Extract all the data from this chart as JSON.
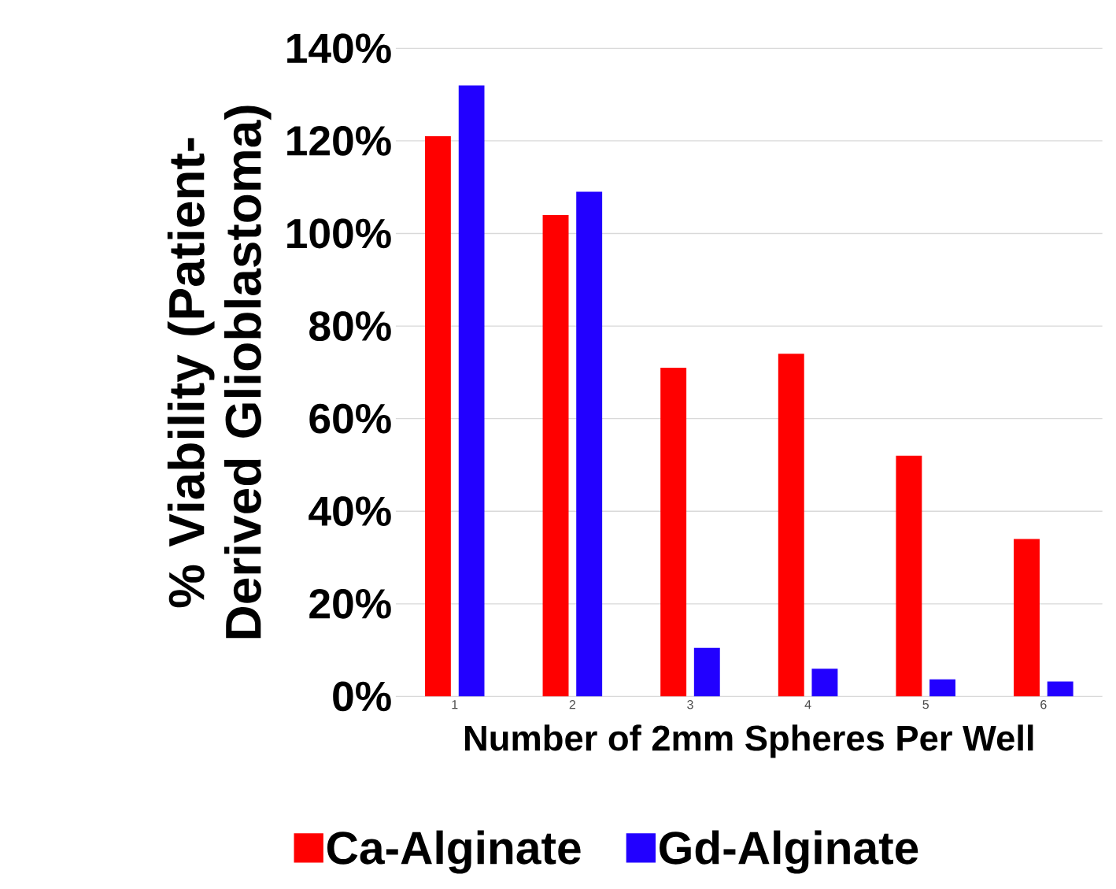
{
  "chart_data": {
    "type": "bar",
    "xlabel": "Number of 2mm Spheres Per Well",
    "ylabel": "% Viability (Patient-Derived Glioblastoma)",
    "categories": [
      "1",
      "2",
      "3",
      "4",
      "5",
      "6"
    ],
    "series": [
      {
        "name": "Ca-Alginate",
        "color": "#ff0000",
        "values": [
          121,
          104,
          71,
          74,
          52,
          34
        ]
      },
      {
        "name": "Gd-Alginate",
        "color": "#2200ff",
        "values": [
          132,
          109,
          10.5,
          6,
          3.7,
          3.2
        ]
      }
    ],
    "ylim": [
      0,
      140
    ],
    "yticks": [
      {
        "value": 0,
        "label": "0%"
      },
      {
        "value": 20,
        "label": "20%"
      },
      {
        "value": 40,
        "label": "40%"
      },
      {
        "value": 60,
        "label": "60%"
      },
      {
        "value": 80,
        "label": "80%"
      },
      {
        "value": 100,
        "label": "100%"
      },
      {
        "value": 120,
        "label": "120%"
      },
      {
        "value": 140,
        "label": "140%"
      }
    ],
    "grid": "y",
    "legend": "bottom"
  }
}
